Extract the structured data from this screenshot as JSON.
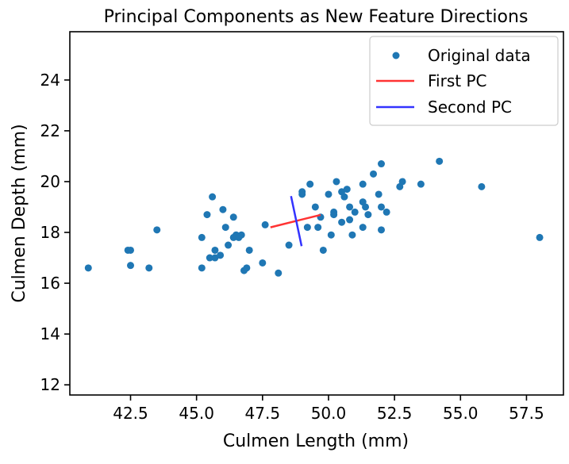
{
  "chart_data": {
    "type": "scatter",
    "title": "Principal Components as New Feature Directions",
    "xlabel": "Culmen Length (mm)",
    "ylabel": "Culmen Depth (mm)",
    "xlim": [
      40.2,
      58.9
    ],
    "ylim": [
      11.6,
      25.9
    ],
    "x_ticks": [
      42.5,
      45.0,
      47.5,
      50.0,
      52.5,
      55.0,
      57.5
    ],
    "x_tick_labels": [
      "42.5",
      "45.0",
      "47.5",
      "50.0",
      "52.5",
      "55.0",
      "57.5"
    ],
    "y_ticks": [
      12,
      14,
      16,
      18,
      20,
      22,
      24
    ],
    "y_tick_labels": [
      "12",
      "14",
      "16",
      "18",
      "20",
      "22",
      "24"
    ],
    "grid": false,
    "legend_position": "top-right",
    "legend": [
      {
        "label": "Original data",
        "kind": "marker",
        "color": "#1f77b4"
      },
      {
        "label": "First PC",
        "kind": "line",
        "color": "#ff3333"
      },
      {
        "label": "Second PC",
        "kind": "line",
        "color": "#3333ff"
      }
    ],
    "series": [
      {
        "name": "Original data",
        "kind": "points",
        "color": "#1f77b4",
        "points": [
          [
            40.9,
            16.6
          ],
          [
            42.4,
            17.3
          ],
          [
            42.5,
            17.3
          ],
          [
            42.5,
            16.7
          ],
          [
            43.2,
            16.6
          ],
          [
            43.5,
            18.1
          ],
          [
            45.2,
            17.8
          ],
          [
            45.2,
            16.6
          ],
          [
            45.4,
            18.7
          ],
          [
            45.5,
            17.0
          ],
          [
            45.6,
            19.4
          ],
          [
            45.7,
            17.3
          ],
          [
            45.7,
            17.0
          ],
          [
            45.9,
            17.1
          ],
          [
            46.0,
            18.9
          ],
          [
            46.1,
            18.2
          ],
          [
            46.2,
            17.5
          ],
          [
            46.4,
            18.6
          ],
          [
            46.4,
            17.8
          ],
          [
            46.5,
            17.9
          ],
          [
            46.6,
            17.8
          ],
          [
            46.7,
            17.9
          ],
          [
            46.8,
            16.5
          ],
          [
            46.9,
            16.6
          ],
          [
            47.0,
            17.3
          ],
          [
            47.5,
            16.8
          ],
          [
            47.6,
            18.3
          ],
          [
            48.1,
            16.4
          ],
          [
            48.5,
            17.5
          ],
          [
            49.0,
            19.5
          ],
          [
            49.0,
            19.6
          ],
          [
            49.2,
            18.2
          ],
          [
            49.3,
            19.9
          ],
          [
            49.5,
            19.0
          ],
          [
            49.6,
            18.2
          ],
          [
            49.7,
            18.6
          ],
          [
            49.8,
            17.3
          ],
          [
            50.0,
            19.5
          ],
          [
            50.1,
            17.9
          ],
          [
            50.2,
            18.8
          ],
          [
            50.2,
            18.7
          ],
          [
            50.3,
            20.0
          ],
          [
            50.5,
            18.4
          ],
          [
            50.5,
            19.6
          ],
          [
            50.6,
            19.4
          ],
          [
            50.7,
            19.7
          ],
          [
            50.8,
            18.5
          ],
          [
            50.8,
            19.0
          ],
          [
            50.9,
            17.9
          ],
          [
            51.0,
            18.8
          ],
          [
            51.3,
            19.9
          ],
          [
            51.3,
            18.2
          ],
          [
            51.3,
            19.2
          ],
          [
            51.4,
            19.0
          ],
          [
            51.5,
            18.7
          ],
          [
            51.7,
            20.3
          ],
          [
            51.9,
            19.5
          ],
          [
            52.0,
            18.1
          ],
          [
            52.0,
            19.0
          ],
          [
            52.0,
            20.7
          ],
          [
            52.2,
            18.8
          ],
          [
            52.7,
            19.8
          ],
          [
            52.8,
            20.0
          ],
          [
            53.5,
            19.9
          ],
          [
            54.2,
            20.8
          ],
          [
            55.8,
            19.8
          ],
          [
            58.0,
            17.8
          ]
        ]
      },
      {
        "name": "First PC",
        "kind": "segment",
        "color": "#ff3333",
        "points": [
          [
            47.8,
            18.2
          ],
          [
            49.7,
            18.69
          ]
        ]
      },
      {
        "name": "Second PC",
        "kind": "segment",
        "color": "#3333ff",
        "points": [
          [
            48.58,
            19.43
          ],
          [
            48.98,
            17.46
          ]
        ]
      }
    ]
  }
}
